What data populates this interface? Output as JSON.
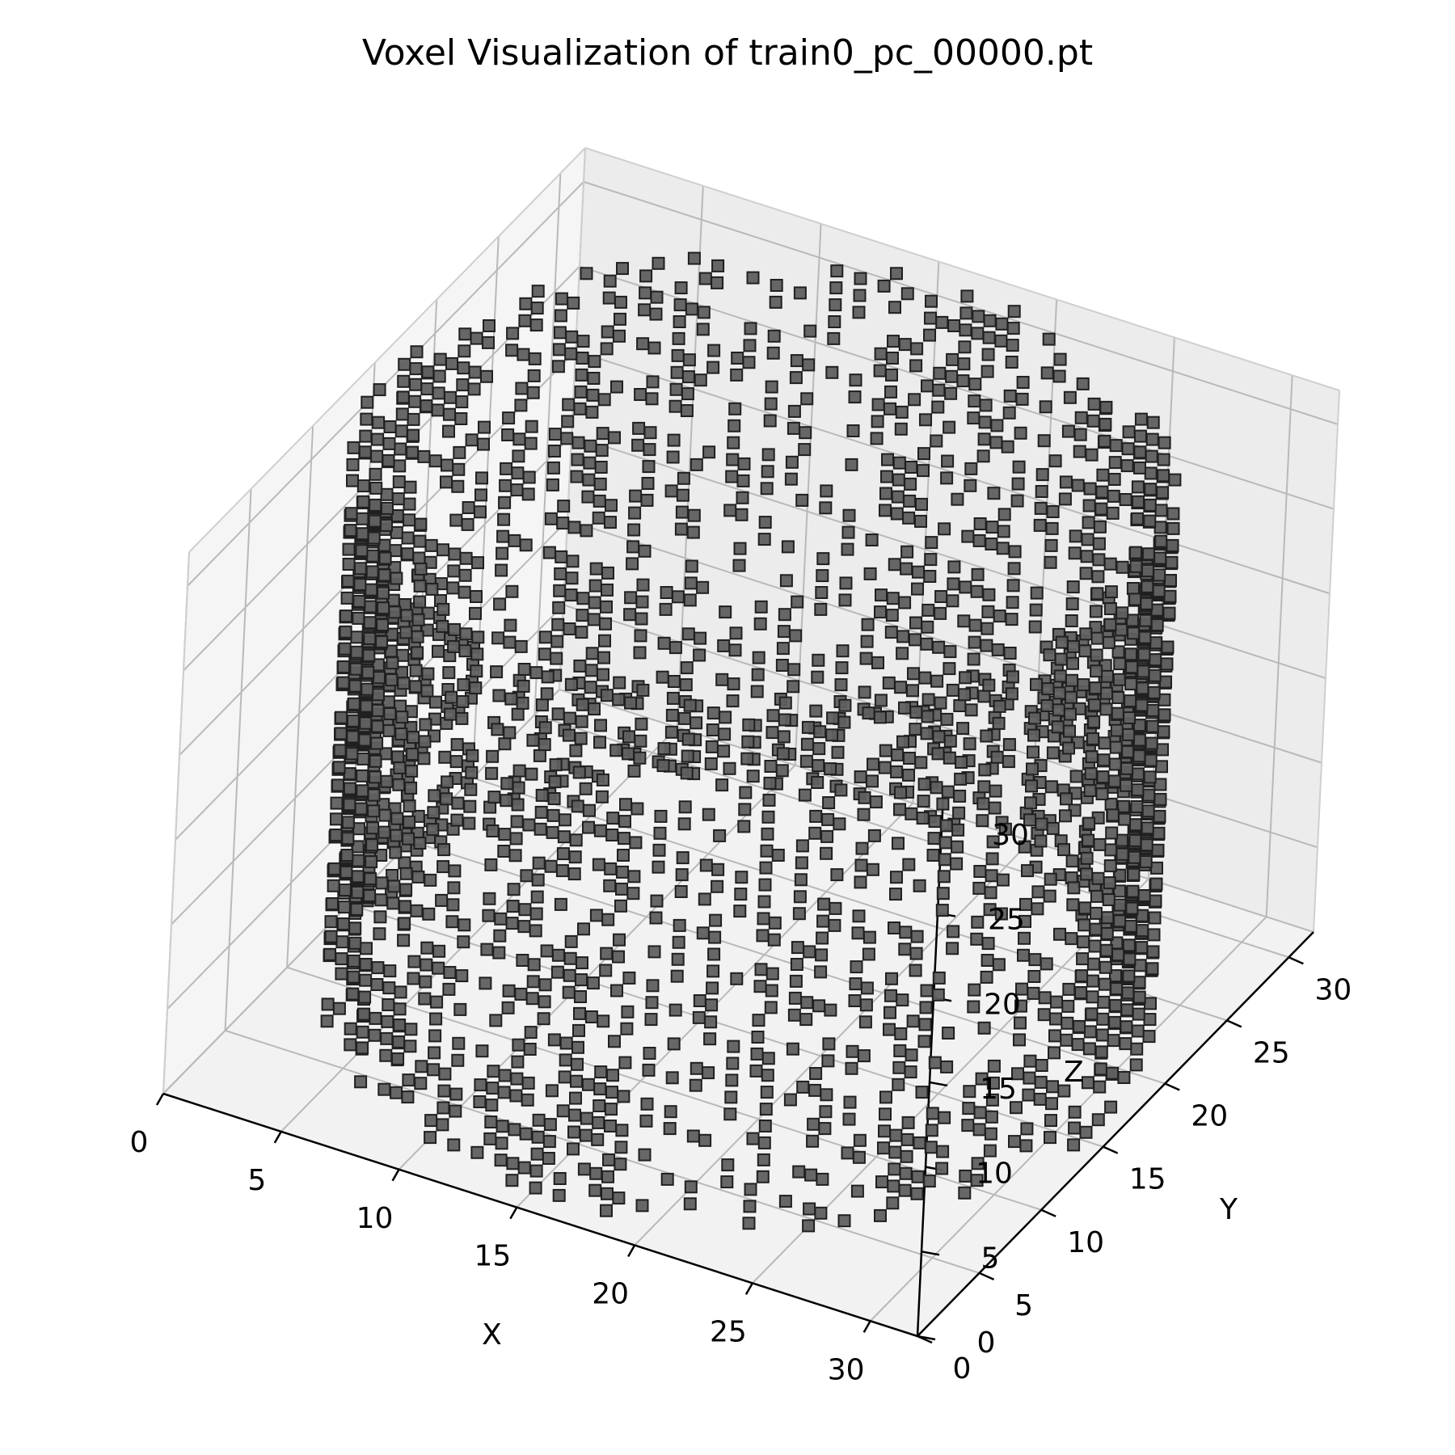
{
  "chart_data": {
    "type": "scatter",
    "projection": "3d",
    "title": "Voxel Visualization of train0_pc_00000.pt",
    "xlabel": "X",
    "ylabel": "Y",
    "zlabel": "Z",
    "xlim": [
      0,
      32
    ],
    "ylim": [
      0,
      32
    ],
    "zlim": [
      0,
      32
    ],
    "xticks": [
      "0",
      "5",
      "10",
      "15",
      "20",
      "25",
      "30"
    ],
    "yticks": [
      "0",
      "5",
      "10",
      "15",
      "20",
      "25",
      "30"
    ],
    "zticks": [
      "0",
      "5",
      "10",
      "15",
      "20",
      "25",
      "30"
    ],
    "grid": true,
    "marker": "square",
    "marker_color": "#5f5f5f",
    "marker_edge_color": "#202020",
    "shape": "hollow cylinder, axis along z, center about (16, 16), radius about 15, height 0 to 31",
    "point_count_estimate": 1600
  }
}
